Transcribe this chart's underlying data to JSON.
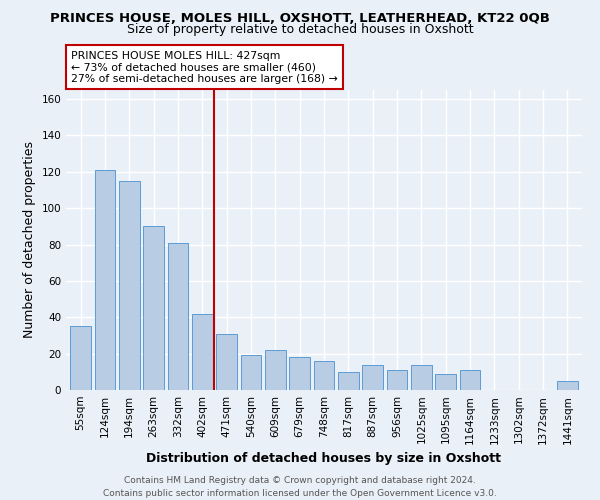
{
  "title": "PRINCES HOUSE, MOLES HILL, OXSHOTT, LEATHERHEAD, KT22 0QB",
  "subtitle": "Size of property relative to detached houses in Oxshott",
  "xlabel": "Distribution of detached houses by size in Oxshott",
  "ylabel": "Number of detached properties",
  "categories": [
    "55sqm",
    "124sqm",
    "194sqm",
    "263sqm",
    "332sqm",
    "402sqm",
    "471sqm",
    "540sqm",
    "609sqm",
    "679sqm",
    "748sqm",
    "817sqm",
    "887sqm",
    "956sqm",
    "1025sqm",
    "1095sqm",
    "1164sqm",
    "1233sqm",
    "1302sqm",
    "1372sqm",
    "1441sqm"
  ],
  "values": [
    35,
    121,
    115,
    90,
    81,
    42,
    31,
    19,
    22,
    18,
    16,
    10,
    14,
    11,
    14,
    9,
    11,
    0,
    0,
    0,
    5
  ],
  "bar_color": "#b8cce4",
  "bar_edge_color": "#5b9bd5",
  "reference_line_x": 5.5,
  "reference_line_color": "#c00000",
  "annotation_text": "PRINCES HOUSE MOLES HILL: 427sqm\n← 73% of detached houses are smaller (460)\n27% of semi-detached houses are larger (168) →",
  "annotation_box_color": "#ffffff",
  "annotation_box_edge_color": "#c00000",
  "ylim": [
    0,
    165
  ],
  "yticks": [
    0,
    20,
    40,
    60,
    80,
    100,
    120,
    140,
    160
  ],
  "footer": "Contains HM Land Registry data © Crown copyright and database right 2024.\nContains public sector information licensed under the Open Government Licence v3.0.",
  "bg_color": "#eaf0f8",
  "grid_color": "#ffffff",
  "title_fontsize": 9.5,
  "subtitle_fontsize": 9,
  "axis_label_fontsize": 9,
  "tick_fontsize": 7.5,
  "footer_fontsize": 6.5
}
